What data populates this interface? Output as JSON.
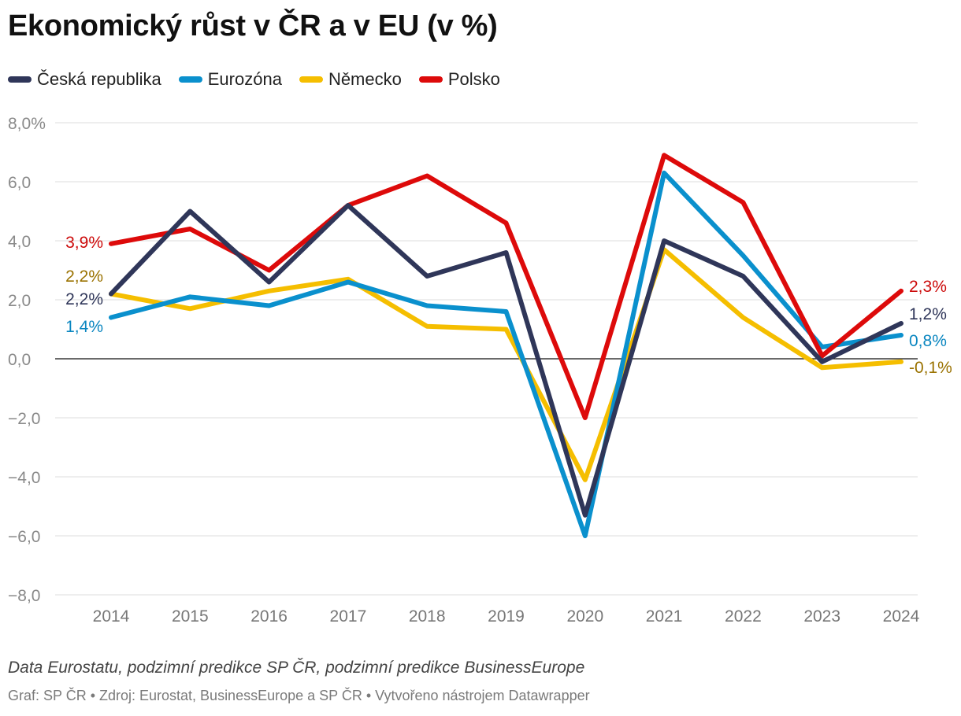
{
  "chart_data": {
    "type": "line",
    "title": "Ekonomický růst v ČR a v EU (v %)",
    "x": [
      "2014",
      "2015",
      "2016",
      "2017",
      "2018",
      "2019",
      "2020",
      "2021",
      "2022",
      "2023",
      "2024"
    ],
    "ylim": [
      -8,
      8
    ],
    "yticks": [
      {
        "value": 8,
        "label": "8,0%"
      },
      {
        "value": 6,
        "label": "6,0"
      },
      {
        "value": 4,
        "label": "4,0"
      },
      {
        "value": 2,
        "label": "2,0"
      },
      {
        "value": 0,
        "label": "0,0"
      },
      {
        "value": -2,
        "label": "−2,0"
      },
      {
        "value": -4,
        "label": "−4,0"
      },
      {
        "value": -6,
        "label": "−6,0"
      },
      {
        "value": -8,
        "label": "−8,0"
      }
    ],
    "grid": true,
    "legend_position": "top-left",
    "series": [
      {
        "name": "Německo",
        "color": "#f5be00",
        "values": [
          2.2,
          1.7,
          2.3,
          2.7,
          1.1,
          1.0,
          -4.1,
          3.7,
          1.4,
          -0.3,
          -0.1
        ],
        "start_label": "2,2%",
        "end_label": "-0,1%",
        "label_color": "#9a7200"
      },
      {
        "name": "Eurozóna",
        "color": "#0a90cd",
        "values": [
          1.4,
          2.1,
          1.8,
          2.6,
          1.8,
          1.6,
          -6.0,
          6.3,
          3.5,
          0.4,
          0.8
        ],
        "start_label": "1,4%",
        "end_label": "0,8%",
        "label_color": "#0a86c0"
      },
      {
        "name": "Polsko",
        "color": "#dd0a0a",
        "values": [
          3.9,
          4.4,
          3.0,
          5.2,
          6.2,
          4.6,
          -2.0,
          6.9,
          5.3,
          0.1,
          2.3
        ],
        "start_label": "3,9%",
        "end_label": "2,3%",
        "label_color": "#cc0a0a"
      },
      {
        "name": "Česká republika",
        "color": "#2f3659",
        "values": [
          2.2,
          5.0,
          2.6,
          5.2,
          2.8,
          3.6,
          -5.3,
          4.0,
          2.8,
          -0.1,
          1.2
        ],
        "start_label": "2,2%",
        "end_label": "1,2%",
        "label_color": "#2f3659"
      }
    ],
    "legend": [
      {
        "name": "Česká republika",
        "color": "#2f3659"
      },
      {
        "name": "Eurozóna",
        "color": "#0a90cd"
      },
      {
        "name": "Německo",
        "color": "#f5be00"
      },
      {
        "name": "Polsko",
        "color": "#dd0a0a"
      }
    ]
  },
  "caption": "Data Eurostatu, podzimní predikce SP ČR, podzimní predikce BusinessEurope",
  "credits": "Graf: SP ČR • Zdroj: Eurostat, BusinessEurope a SP ČR • Vytvořeno nástrojem Datawrapper"
}
